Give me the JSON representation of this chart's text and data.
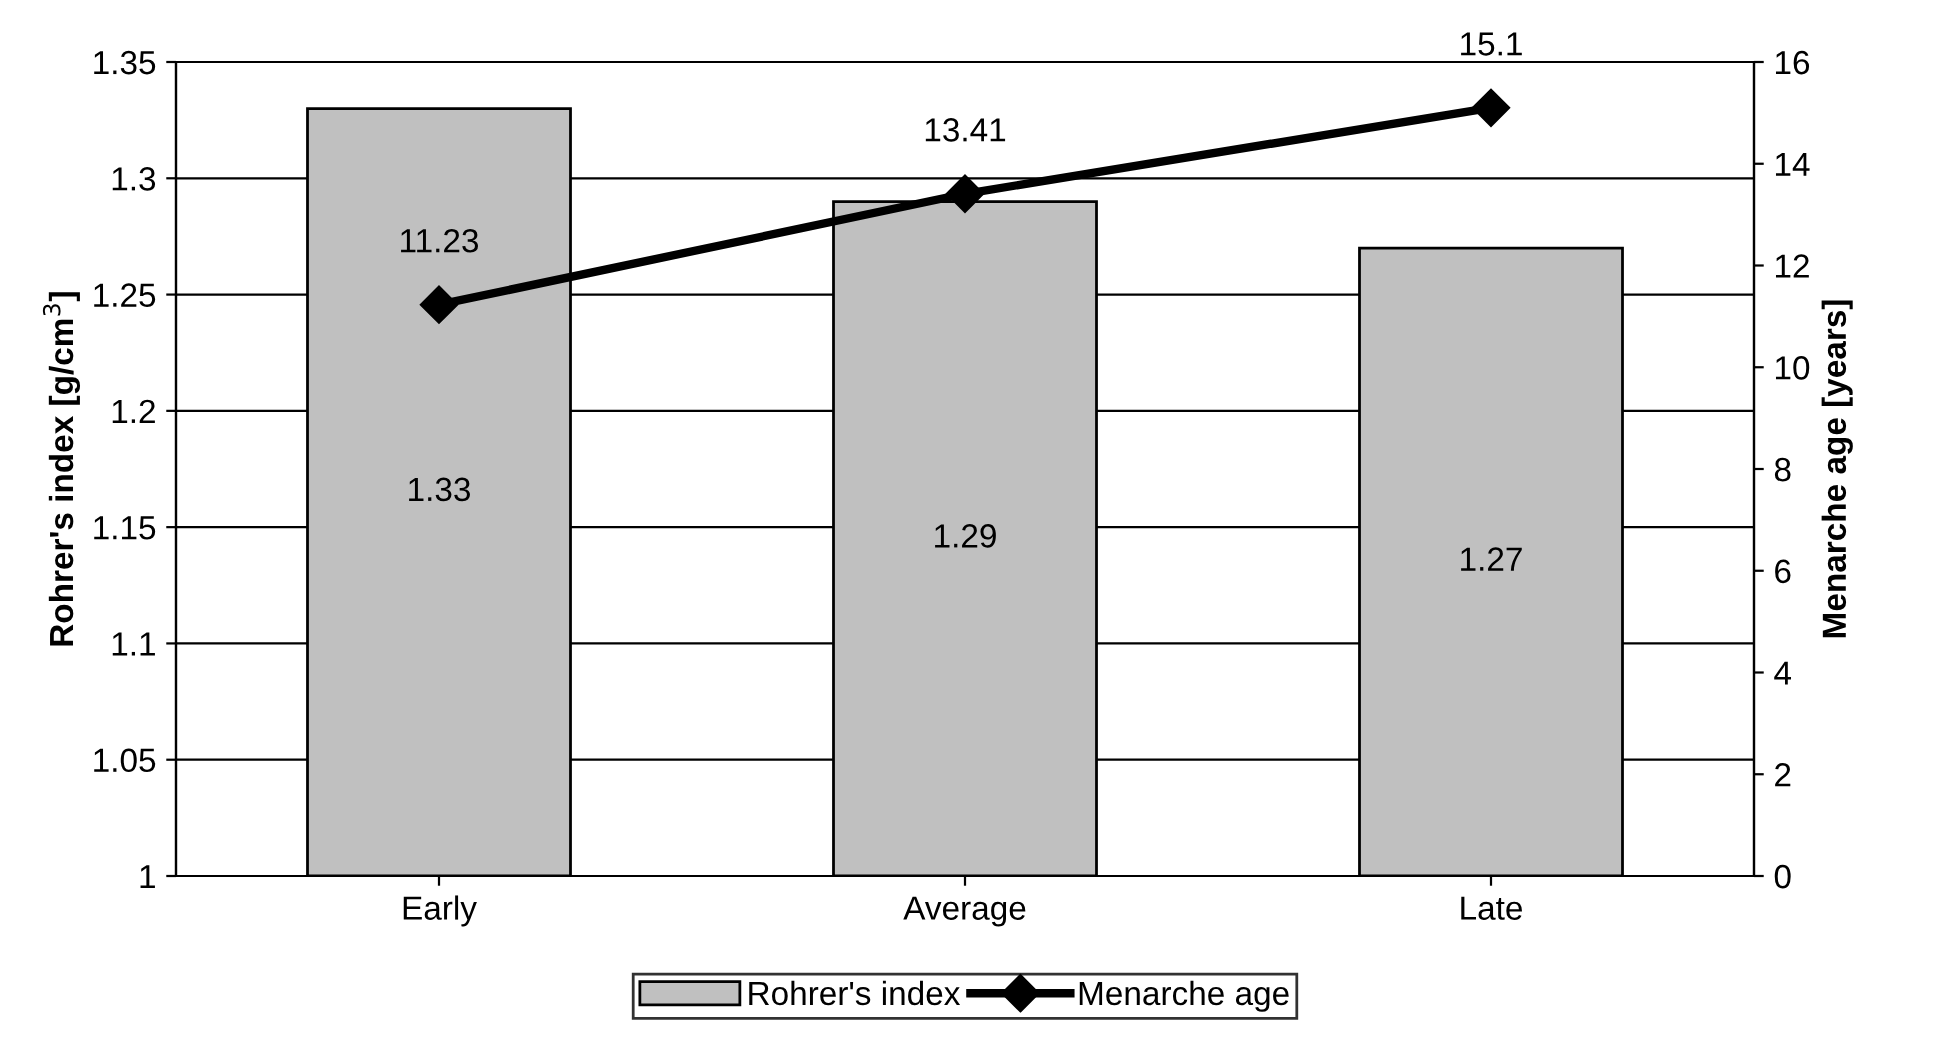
{
  "chart_data": {
    "type": "bar",
    "categories": [
      "Early",
      "Average",
      "Late"
    ],
    "ylabel": "Rohrer's index [g/cm$^{3}$]",
    "y2label": "Menarche age [years]",
    "series": [
      {
        "name": "Rohrer's index",
        "color": "#c0c0c0",
        "values": [
          1.33,
          1.29,
          1.27
        ]
      },
      {
        "name": "Menarche age",
        "type": "line",
        "axis": "y2",
        "color": "#000000",
        "marker": "diamond",
        "line_style": "solid",
        "values": [
          11.23,
          13.41,
          15.1
        ]
      }
    ],
    "ylim": [
      1,
      1.35
    ],
    "yticks": [
      1,
      1.05,
      1.1,
      1.15,
      1.2,
      1.25,
      1.3,
      1.35
    ],
    "y2lim": [
      0,
      16
    ],
    "y2ticks": [
      0,
      2,
      4,
      6,
      8,
      10,
      12,
      14,
      16
    ],
    "grid": "y",
    "legend": "bottom",
    "data_labels": true
  }
}
